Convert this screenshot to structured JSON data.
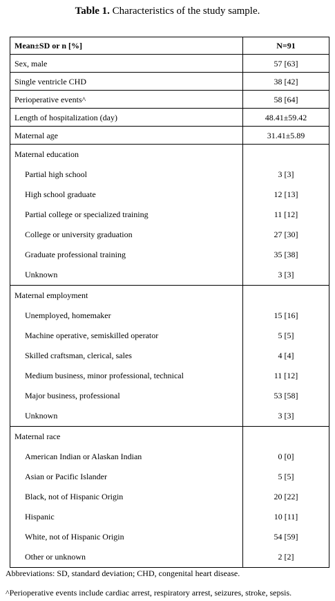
{
  "title": {
    "label": "Table 1.",
    "text": "Characteristics of the study sample."
  },
  "table": {
    "header": {
      "col1": "Mean±SD or n [%]",
      "col2": "N=91"
    },
    "rows": [
      {
        "label": "Sex, male",
        "value": "57 [63]"
      },
      {
        "label": "Single ventricle CHD",
        "value": "38 [42]"
      },
      {
        "label": "Perioperative events^",
        "value": "58 [64]"
      },
      {
        "label": "Length of hospitalization (day)",
        "value": "48.41±59.42"
      },
      {
        "label": "Maternal age",
        "value": "31.41±5.89"
      }
    ],
    "groups": [
      {
        "category": "Maternal education",
        "items": [
          {
            "label": "Partial high school",
            "value": "3 [3]"
          },
          {
            "label": "High school graduate",
            "value": "12 [13]"
          },
          {
            "label": "Partial college or specialized training",
            "value": "11 [12]"
          },
          {
            "label": "College or university graduation",
            "value": "27 [30]"
          },
          {
            "label": "Graduate professional training",
            "value": "35 [38]"
          },
          {
            "label": "Unknown",
            "value": "3 [3]"
          }
        ]
      },
      {
        "category": "Maternal employment",
        "items": [
          {
            "label": "Unemployed, homemaker",
            "value": "15 [16]"
          },
          {
            "label": "Machine operative, semiskilled operator",
            "value": "5 [5]"
          },
          {
            "label": "Skilled craftsman, clerical, sales",
            "value": "4 [4]"
          },
          {
            "label": "Medium business, minor professional, technical",
            "value": "11 [12]"
          },
          {
            "label": "Major business, professional",
            "value": "53 [58]"
          },
          {
            "label": "Unknown",
            "value": "3 [3]"
          }
        ]
      },
      {
        "category": "Maternal race",
        "items": [
          {
            "label": "American Indian or Alaskan Indian",
            "value": "0 [0]"
          },
          {
            "label": "Asian or Pacific Islander",
            "value": "5 [5]"
          },
          {
            "label": "Black, not of Hispanic Origin",
            "value": "20 [22]"
          },
          {
            "label": "Hispanic",
            "value": "10 [11]"
          },
          {
            "label": "White, not of Hispanic Origin",
            "value": "54 [59]"
          },
          {
            "label": "Other or unknown",
            "value": "2 [2]"
          }
        ]
      }
    ]
  },
  "notes": {
    "abbreviations": "Abbreviations: SD, standard deviation; CHD, congenital heart disease.",
    "footnote": "^Perioperative events include cardiac arrest, respiratory arrest, seizures, stroke, sepsis."
  }
}
